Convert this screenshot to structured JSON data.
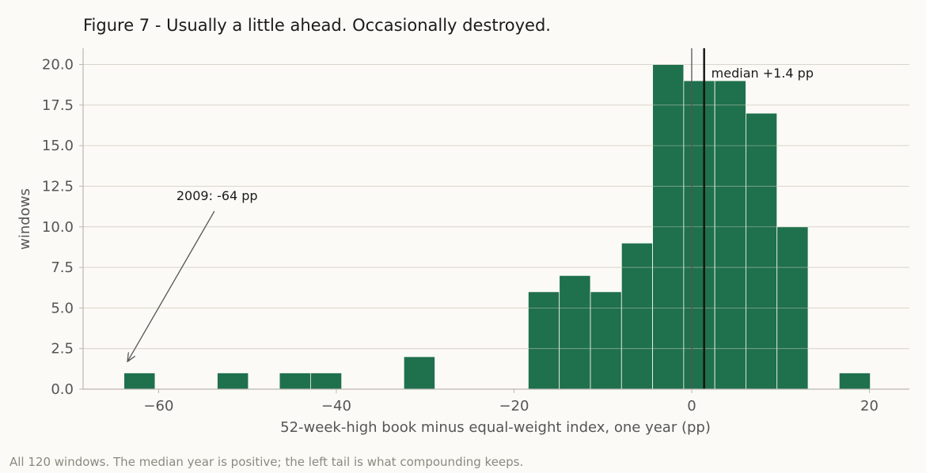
{
  "chart_data": {
    "type": "bar",
    "title": "Figure 7 - Usually a little ahead. Occasionally destroyed.",
    "xlabel": "52-week-high book minus equal-weight index, one year (pp)",
    "ylabel": "windows",
    "xlim": [
      -68.5,
      24.5
    ],
    "ylim": [
      0,
      21
    ],
    "bin_width": 3.5,
    "bins": [
      {
        "x0": -63.9,
        "x1": -60.4,
        "count": 1
      },
      {
        "x0": -53.4,
        "x1": -49.9,
        "count": 1
      },
      {
        "x0": -46.4,
        "x1": -42.9,
        "count": 1
      },
      {
        "x0": -42.9,
        "x1": -39.4,
        "count": 1
      },
      {
        "x0": -32.4,
        "x1": -28.9,
        "count": 2
      },
      {
        "x0": -18.4,
        "x1": -14.9,
        "count": 6
      },
      {
        "x0": -14.9,
        "x1": -11.4,
        "count": 7
      },
      {
        "x0": -11.4,
        "x1": -7.9,
        "count": 6
      },
      {
        "x0": -7.9,
        "x1": -4.4,
        "count": 9
      },
      {
        "x0": -4.4,
        "x1": -0.9,
        "count": 20
      },
      {
        "x0": -0.9,
        "x1": 2.6,
        "count": 19
      },
      {
        "x0": 2.6,
        "x1": 6.1,
        "count": 19
      },
      {
        "x0": 6.1,
        "x1": 9.6,
        "count": 17
      },
      {
        "x0": 9.6,
        "x1": 13.1,
        "count": 10
      },
      {
        "x0": 16.6,
        "x1": 20.1,
        "count": 1
      }
    ],
    "x_ticks": [
      {
        "value": -60,
        "label": "−60"
      },
      {
        "value": -40,
        "label": "−40"
      },
      {
        "value": -20,
        "label": "−20"
      },
      {
        "value": 0,
        "label": "0"
      },
      {
        "value": 20,
        "label": "20"
      }
    ],
    "y_ticks": [
      {
        "value": 0,
        "label": "0.0"
      },
      {
        "value": 2.5,
        "label": "2.5"
      },
      {
        "value": 5,
        "label": "5.0"
      },
      {
        "value": 7.5,
        "label": "7.5"
      },
      {
        "value": 10,
        "label": "10.0"
      },
      {
        "value": 12.5,
        "label": "12.5"
      },
      {
        "value": 15,
        "label": "15.0"
      },
      {
        "value": 17.5,
        "label": "17.5"
      },
      {
        "value": 20,
        "label": "20.0"
      }
    ],
    "zero_line": 0,
    "median": {
      "value": 1.4,
      "label": "median +1.4 pp"
    },
    "annotation": {
      "text": "2009: -64 pp",
      "text_x": -58,
      "text_y": 11.5,
      "point_x": -63.5,
      "point_y": 1.7
    },
    "grid": true,
    "colors": {
      "bar": "#1f704c",
      "grid": "#d9d6cc",
      "median": "#111111",
      "zero": "#555555",
      "axis": "#bbb8ae"
    }
  },
  "footnote": "All 120 windows. The median year is positive; the left tail is what compounding keeps."
}
